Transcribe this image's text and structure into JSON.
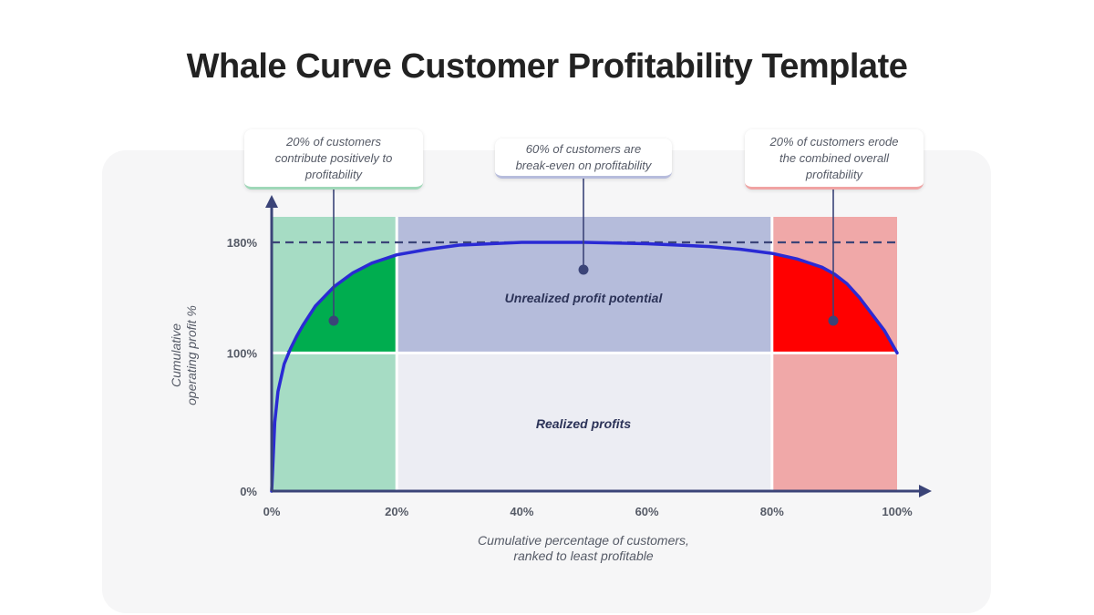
{
  "title": "Whale Curve Customer Profitability Template",
  "callouts": {
    "left": [
      "20% of customers",
      "contribute positively to",
      "profitability"
    ],
    "middle": [
      "60%  of customers are",
      "break-even on profitability"
    ],
    "right": [
      "20% of customers erode",
      "the combined overall",
      "profitability"
    ]
  },
  "regions": {
    "unrealized": "Unrealized profit potential",
    "realized": "Realized profits"
  },
  "colors": {
    "curve": "#2a2ad4",
    "axis": "#3b4478",
    "dashed_line": "#3b4478",
    "green_light": "#a6dcc4",
    "green_dark": "#00ad4f",
    "blue_light": "#b5bcdb",
    "gray_light": "#ecedf3",
    "red_light": "#f0a8a8",
    "red_dark": "#ff0000"
  },
  "chart_data": {
    "type": "line",
    "title": "",
    "xlabel": [
      "Cumulative percentage of customers,",
      "ranked to least profitable"
    ],
    "ylabel": [
      "Cumulative",
      "operating profit %"
    ],
    "x_ticks": [
      {
        "value": 0,
        "label": "0%"
      },
      {
        "value": 20,
        "label": "20%"
      },
      {
        "value": 40,
        "label": "40%"
      },
      {
        "value": 60,
        "label": "60%"
      },
      {
        "value": 80,
        "label": "80%"
      },
      {
        "value": 100,
        "label": "100%"
      }
    ],
    "y_ticks": [
      {
        "value": 0,
        "label": "0%"
      },
      {
        "value": 100,
        "label": "100%"
      },
      {
        "value": 180,
        "label": "180%"
      }
    ],
    "xlim": [
      0,
      100
    ],
    "ylim": [
      0,
      180
    ],
    "reference_line_y": 180,
    "segments": [
      {
        "from": 0,
        "to": 20,
        "group": "contribute positively"
      },
      {
        "from": 20,
        "to": 80,
        "group": "break-even"
      },
      {
        "from": 80,
        "to": 100,
        "group": "erode"
      }
    ],
    "series": [
      {
        "x": [
          0,
          0.5,
          1,
          2,
          3,
          4,
          5,
          7,
          10,
          13,
          16,
          20,
          25,
          30,
          40,
          50,
          60,
          70,
          75,
          80,
          84,
          88,
          90,
          92,
          94,
          96,
          98,
          100
        ],
        "values": [
          0,
          50,
          72,
          92,
          103,
          112,
          120,
          134,
          148,
          158,
          165,
          171,
          175,
          178,
          180,
          180,
          179,
          177,
          175,
          172,
          168,
          162,
          157,
          150,
          140,
          128,
          116,
          100
        ]
      }
    ]
  }
}
